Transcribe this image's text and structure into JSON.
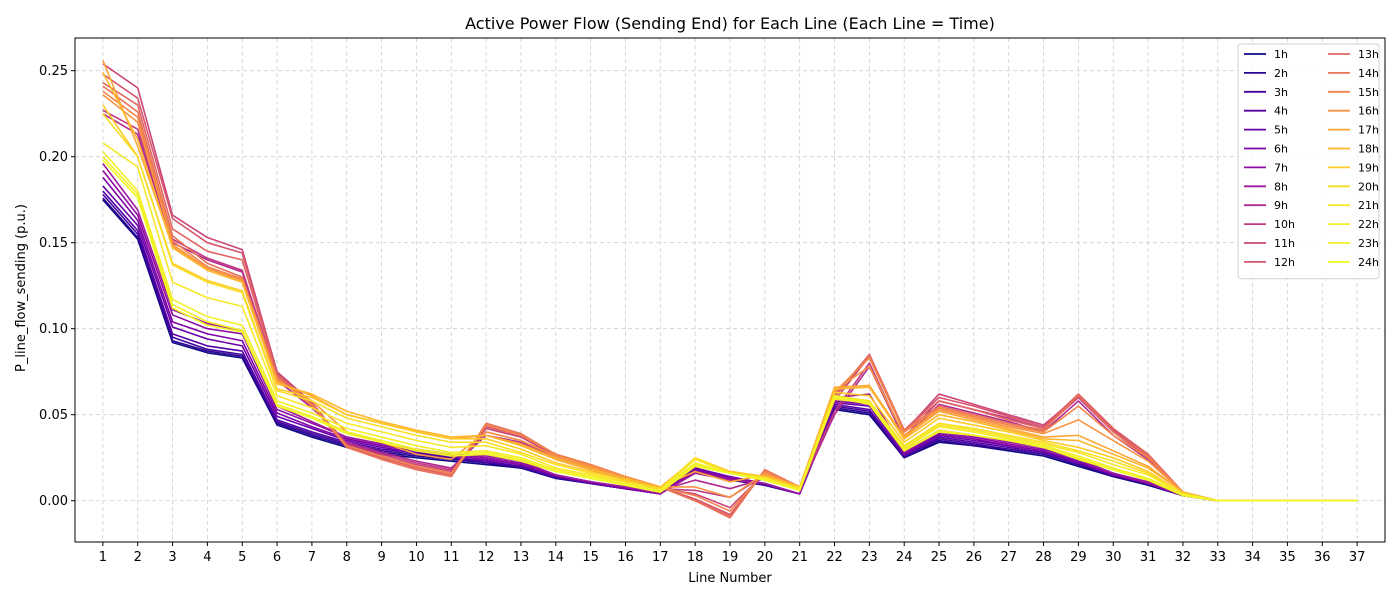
{
  "chart_data": {
    "type": "line",
    "title": "Active Power Flow (Sending End) for Each Line (Each Line = Time)",
    "xlabel": "Line Number",
    "ylabel": "P_line_flow_sending (p.u.)",
    "xlim": [
      0.2,
      37.8
    ],
    "ylim": [
      -0.024,
      0.269
    ],
    "yticks": [
      0.0,
      0.05,
      0.1,
      0.15,
      0.2,
      0.25
    ],
    "ytick_labels": [
      "0.00",
      "0.05",
      "0.10",
      "0.15",
      "0.20",
      "0.25"
    ],
    "grid": true,
    "legend_position": "top-right",
    "legend_columns": 2,
    "x": [
      1,
      2,
      3,
      4,
      5,
      6,
      7,
      8,
      9,
      10,
      11,
      12,
      13,
      14,
      15,
      16,
      17,
      18,
      19,
      20,
      21,
      22,
      23,
      24,
      25,
      26,
      27,
      28,
      29,
      30,
      31,
      32,
      33,
      34,
      35,
      36,
      37
    ],
    "series": [
      {
        "name": "1h",
        "color": "#0d0887",
        "values": [
          0.175,
          0.152,
          0.092,
          0.086,
          0.083,
          0.044,
          0.037,
          0.031,
          0.027,
          0.025,
          0.023,
          0.021,
          0.019,
          0.013,
          0.01,
          0.007,
          0.004,
          0.018,
          0.012,
          0.009,
          0.004,
          0.053,
          0.05,
          0.025,
          0.034,
          0.032,
          0.029,
          0.026,
          0.02,
          0.014,
          0.009,
          0.003,
          0.0,
          0.0,
          0.0,
          0.0,
          0.0
        ]
      },
      {
        "name": "2h",
        "color": "#2a0593",
        "values": [
          0.176,
          0.153,
          0.093,
          0.087,
          0.084,
          0.045,
          0.038,
          0.032,
          0.028,
          0.026,
          0.024,
          0.022,
          0.019,
          0.013,
          0.01,
          0.007,
          0.004,
          0.018,
          0.013,
          0.009,
          0.004,
          0.054,
          0.051,
          0.025,
          0.035,
          0.032,
          0.03,
          0.027,
          0.021,
          0.014,
          0.01,
          0.003,
          0.0,
          0.0,
          0.0,
          0.0,
          0.0
        ]
      },
      {
        "name": "3h",
        "color": "#41049d",
        "values": [
          0.178,
          0.155,
          0.095,
          0.088,
          0.085,
          0.046,
          0.039,
          0.033,
          0.029,
          0.027,
          0.025,
          0.022,
          0.02,
          0.014,
          0.01,
          0.007,
          0.004,
          0.019,
          0.013,
          0.009,
          0.004,
          0.055,
          0.052,
          0.026,
          0.036,
          0.033,
          0.03,
          0.027,
          0.021,
          0.015,
          0.01,
          0.003,
          0.0,
          0.0,
          0.0,
          0.0,
          0.0
        ]
      },
      {
        "name": "4h",
        "color": "#5402a3",
        "values": [
          0.18,
          0.157,
          0.097,
          0.09,
          0.087,
          0.047,
          0.04,
          0.034,
          0.03,
          0.028,
          0.025,
          0.023,
          0.02,
          0.014,
          0.01,
          0.007,
          0.004,
          0.019,
          0.013,
          0.01,
          0.004,
          0.056,
          0.053,
          0.026,
          0.037,
          0.034,
          0.031,
          0.028,
          0.022,
          0.015,
          0.01,
          0.003,
          0.0,
          0.0,
          0.0,
          0.0,
          0.0
        ]
      },
      {
        "name": "5h",
        "color": "#6a00a8",
        "values": [
          0.183,
          0.16,
          0.101,
          0.094,
          0.09,
          0.049,
          0.042,
          0.035,
          0.031,
          0.028,
          0.026,
          0.024,
          0.021,
          0.014,
          0.011,
          0.007,
          0.004,
          0.019,
          0.014,
          0.01,
          0.004,
          0.057,
          0.055,
          0.027,
          0.038,
          0.035,
          0.032,
          0.029,
          0.022,
          0.015,
          0.01,
          0.003,
          0.0,
          0.0,
          0.0,
          0.0,
          0.0
        ]
      },
      {
        "name": "6h",
        "color": "#7e03a8",
        "values": [
          0.188,
          0.163,
          0.104,
          0.097,
          0.093,
          0.051,
          0.043,
          0.036,
          0.032,
          0.029,
          0.026,
          0.024,
          0.021,
          0.015,
          0.011,
          0.007,
          0.004,
          0.018,
          0.014,
          0.01,
          0.004,
          0.058,
          0.056,
          0.027,
          0.039,
          0.036,
          0.032,
          0.029,
          0.023,
          0.015,
          0.01,
          0.003,
          0.0,
          0.0,
          0.0,
          0.0,
          0.0
        ]
      },
      {
        "name": "7h",
        "color": "#8f0da4",
        "values": [
          0.192,
          0.166,
          0.108,
          0.1,
          0.097,
          0.053,
          0.045,
          0.037,
          0.033,
          0.03,
          0.027,
          0.025,
          0.022,
          0.015,
          0.011,
          0.008,
          0.004,
          0.017,
          0.013,
          0.01,
          0.004,
          0.059,
          0.058,
          0.028,
          0.04,
          0.037,
          0.033,
          0.03,
          0.024,
          0.016,
          0.01,
          0.003,
          0.0,
          0.0,
          0.0,
          0.0,
          0.0
        ]
      },
      {
        "name": "8h",
        "color": "#a01a9c",
        "values": [
          0.196,
          0.169,
          0.111,
          0.103,
          0.099,
          0.055,
          0.046,
          0.037,
          0.033,
          0.03,
          0.027,
          0.026,
          0.023,
          0.015,
          0.011,
          0.008,
          0.004,
          0.016,
          0.012,
          0.01,
          0.004,
          0.06,
          0.062,
          0.029,
          0.041,
          0.038,
          0.034,
          0.031,
          0.024,
          0.016,
          0.011,
          0.003,
          0.0,
          0.0,
          0.0,
          0.0,
          0.0
        ]
      },
      {
        "name": "9h",
        "color": "#b12a90",
        "values": [
          0.225,
          0.213,
          0.15,
          0.14,
          0.133,
          0.07,
          0.054,
          0.034,
          0.028,
          0.023,
          0.019,
          0.038,
          0.034,
          0.024,
          0.018,
          0.012,
          0.006,
          0.012,
          0.007,
          0.013,
          0.006,
          0.05,
          0.078,
          0.036,
          0.056,
          0.051,
          0.046,
          0.04,
          0.058,
          0.038,
          0.024,
          0.005,
          0.0,
          0.0,
          0.0,
          0.0,
          0.0
        ]
      },
      {
        "name": "10h",
        "color": "#bf3984",
        "values": [
          0.227,
          0.216,
          0.152,
          0.141,
          0.134,
          0.072,
          0.055,
          0.033,
          0.027,
          0.022,
          0.018,
          0.04,
          0.035,
          0.025,
          0.019,
          0.013,
          0.007,
          0.006,
          0.002,
          0.015,
          0.007,
          0.052,
          0.08,
          0.037,
          0.058,
          0.053,
          0.048,
          0.042,
          0.06,
          0.04,
          0.025,
          0.005,
          0.0,
          0.0,
          0.0,
          0.0,
          0.0
        ]
      },
      {
        "name": "11h",
        "color": "#cb4679",
        "values": [
          0.254,
          0.24,
          0.166,
          0.153,
          0.146,
          0.075,
          0.057,
          0.032,
          0.026,
          0.021,
          0.017,
          0.042,
          0.037,
          0.026,
          0.02,
          0.013,
          0.007,
          0.004,
          -0.004,
          0.016,
          0.007,
          0.058,
          0.084,
          0.04,
          0.062,
          0.056,
          0.05,
          0.044,
          0.061,
          0.041,
          0.026,
          0.005,
          0.0,
          0.0,
          0.0,
          0.0,
          0.0
        ]
      },
      {
        "name": "12h",
        "color": "#d6556d",
        "values": [
          0.248,
          0.234,
          0.164,
          0.15,
          0.144,
          0.074,
          0.056,
          0.031,
          0.025,
          0.019,
          0.015,
          0.043,
          0.038,
          0.027,
          0.021,
          0.014,
          0.008,
          0.001,
          -0.008,
          0.017,
          0.008,
          0.06,
          0.085,
          0.041,
          0.06,
          0.055,
          0.049,
          0.043,
          0.062,
          0.042,
          0.027,
          0.005,
          0.0,
          0.0,
          0.0,
          0.0,
          0.0
        ]
      },
      {
        "name": "13h",
        "color": "#e16462",
        "values": [
          0.243,
          0.23,
          0.158,
          0.145,
          0.14,
          0.073,
          0.056,
          0.031,
          0.025,
          0.019,
          0.015,
          0.044,
          0.038,
          0.027,
          0.021,
          0.014,
          0.008,
          0.0,
          -0.009,
          0.018,
          0.008,
          0.061,
          0.085,
          0.041,
          0.058,
          0.053,
          0.047,
          0.042,
          0.062,
          0.042,
          0.027,
          0.005,
          0.0,
          0.0,
          0.0,
          0.0,
          0.0
        ]
      },
      {
        "name": "14h",
        "color": "#e97257",
        "values": [
          0.241,
          0.226,
          0.154,
          0.138,
          0.13,
          0.072,
          0.055,
          0.031,
          0.024,
          0.018,
          0.014,
          0.045,
          0.039,
          0.027,
          0.021,
          0.014,
          0.008,
          0.0,
          -0.01,
          0.018,
          0.008,
          0.062,
          0.084,
          0.041,
          0.055,
          0.05,
          0.045,
          0.041,
          0.061,
          0.04,
          0.026,
          0.005,
          0.0,
          0.0,
          0.0,
          0.0,
          0.0
        ]
      },
      {
        "name": "15h",
        "color": "#f2844b",
        "values": [
          0.238,
          0.223,
          0.151,
          0.136,
          0.129,
          0.071,
          0.056,
          0.032,
          0.026,
          0.02,
          0.016,
          0.044,
          0.038,
          0.027,
          0.021,
          0.014,
          0.008,
          0.003,
          -0.006,
          0.017,
          0.008,
          0.063,
          0.083,
          0.04,
          0.054,
          0.049,
          0.044,
          0.04,
          0.055,
          0.038,
          0.025,
          0.005,
          0.0,
          0.0,
          0.0,
          0.0,
          0.0
        ]
      },
      {
        "name": "16h",
        "color": "#f89441",
        "values": [
          0.236,
          0.22,
          0.149,
          0.135,
          0.128,
          0.07,
          0.058,
          0.04,
          0.034,
          0.027,
          0.024,
          0.04,
          0.035,
          0.026,
          0.02,
          0.014,
          0.008,
          0.008,
          0.002,
          0.016,
          0.008,
          0.064,
          0.078,
          0.038,
          0.053,
          0.048,
          0.043,
          0.039,
          0.047,
          0.035,
          0.023,
          0.005,
          0.0,
          0.0,
          0.0,
          0.0,
          0.0
        ]
      },
      {
        "name": "17h",
        "color": "#fca636",
        "values": [
          0.256,
          0.206,
          0.148,
          0.134,
          0.127,
          0.069,
          0.061,
          0.05,
          0.045,
          0.04,
          0.036,
          0.038,
          0.033,
          0.025,
          0.019,
          0.013,
          0.008,
          0.017,
          0.011,
          0.015,
          0.008,
          0.066,
          0.067,
          0.037,
          0.052,
          0.047,
          0.042,
          0.037,
          0.038,
          0.029,
          0.02,
          0.005,
          0.0,
          0.0,
          0.0,
          0.0,
          0.0
        ]
      },
      {
        "name": "18h",
        "color": "#feb72d",
        "values": [
          0.249,
          0.21,
          0.147,
          0.134,
          0.127,
          0.068,
          0.062,
          0.052,
          0.046,
          0.041,
          0.037,
          0.038,
          0.032,
          0.024,
          0.018,
          0.013,
          0.008,
          0.024,
          0.017,
          0.014,
          0.008,
          0.065,
          0.066,
          0.036,
          0.05,
          0.046,
          0.041,
          0.036,
          0.035,
          0.027,
          0.019,
          0.005,
          0.0,
          0.0,
          0.0,
          0.0,
          0.0
        ]
      },
      {
        "name": "19h",
        "color": "#fdca26",
        "values": [
          0.23,
          0.2,
          0.138,
          0.128,
          0.122,
          0.065,
          0.06,
          0.05,
          0.045,
          0.04,
          0.036,
          0.036,
          0.03,
          0.022,
          0.017,
          0.012,
          0.007,
          0.025,
          0.017,
          0.014,
          0.008,
          0.063,
          0.061,
          0.034,
          0.048,
          0.044,
          0.04,
          0.035,
          0.031,
          0.025,
          0.017,
          0.004,
          0.0,
          0.0,
          0.0,
          0.0,
          0.0
        ]
      },
      {
        "name": "20h",
        "color": "#f8df25",
        "values": [
          0.225,
          0.2,
          0.137,
          0.127,
          0.121,
          0.064,
          0.058,
          0.048,
          0.043,
          0.038,
          0.034,
          0.034,
          0.028,
          0.021,
          0.016,
          0.011,
          0.007,
          0.025,
          0.016,
          0.013,
          0.007,
          0.061,
          0.058,
          0.032,
          0.045,
          0.042,
          0.038,
          0.034,
          0.029,
          0.023,
          0.016,
          0.004,
          0.0,
          0.0,
          0.0,
          0.0,
          0.0
        ]
      },
      {
        "name": "21h",
        "color": "#f7e72a",
        "values": [
          0.208,
          0.194,
          0.127,
          0.118,
          0.113,
          0.061,
          0.054,
          0.045,
          0.04,
          0.035,
          0.031,
          0.032,
          0.027,
          0.019,
          0.015,
          0.01,
          0.006,
          0.024,
          0.016,
          0.013,
          0.007,
          0.06,
          0.058,
          0.031,
          0.044,
          0.041,
          0.037,
          0.033,
          0.028,
          0.021,
          0.015,
          0.004,
          0.0,
          0.0,
          0.0,
          0.0,
          0.0
        ]
      },
      {
        "name": "22h",
        "color": "#f3ee27",
        "values": [
          0.203,
          0.18,
          0.117,
          0.107,
          0.102,
          0.058,
          0.051,
          0.042,
          0.037,
          0.032,
          0.028,
          0.029,
          0.025,
          0.018,
          0.014,
          0.01,
          0.006,
          0.022,
          0.016,
          0.013,
          0.006,
          0.059,
          0.057,
          0.03,
          0.043,
          0.04,
          0.036,
          0.032,
          0.026,
          0.019,
          0.013,
          0.004,
          0.0,
          0.0,
          0.0,
          0.0,
          0.0
        ]
      },
      {
        "name": "23h",
        "color": "#f1f029",
        "values": [
          0.2,
          0.178,
          0.114,
          0.104,
          0.099,
          0.056,
          0.049,
          0.04,
          0.035,
          0.03,
          0.027,
          0.028,
          0.024,
          0.017,
          0.013,
          0.009,
          0.005,
          0.021,
          0.016,
          0.012,
          0.006,
          0.06,
          0.056,
          0.029,
          0.041,
          0.038,
          0.035,
          0.031,
          0.025,
          0.018,
          0.012,
          0.003,
          0.0,
          0.0,
          0.0,
          0.0,
          0.0
        ]
      },
      {
        "name": "24h",
        "color": "#f0f921",
        "values": [
          0.198,
          0.176,
          0.112,
          0.102,
          0.098,
          0.055,
          0.048,
          0.039,
          0.034,
          0.029,
          0.026,
          0.027,
          0.023,
          0.017,
          0.013,
          0.009,
          0.005,
          0.02,
          0.016,
          0.012,
          0.006,
          0.061,
          0.057,
          0.029,
          0.04,
          0.038,
          0.035,
          0.031,
          0.024,
          0.018,
          0.012,
          0.003,
          0.0,
          0.0,
          0.0,
          0.0,
          0.0
        ]
      }
    ]
  }
}
